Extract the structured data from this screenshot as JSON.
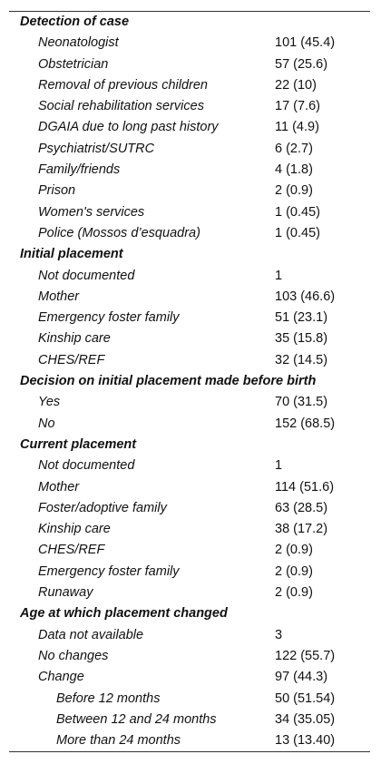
{
  "table": {
    "sections": [
      {
        "title": "Detection of case",
        "rows": [
          {
            "label": "Neonatologist",
            "value": "101 (45.4)"
          },
          {
            "label": "Obstetrician",
            "value": "57 (25.6)"
          },
          {
            "label": "Removal of previous children",
            "value": "22 (10)"
          },
          {
            "label": "Social rehabilitation services",
            "value": "17 (7.6)"
          },
          {
            "label": "DGAIA due to long past history",
            "value": "11 (4.9)"
          },
          {
            "label": "Psychiatrist/SUTRC",
            "value": "6 (2.7)"
          },
          {
            "label": "Family/friends",
            "value": "4 (1.8)"
          },
          {
            "label": "Prison",
            "value": "2 (0.9)"
          },
          {
            "label": "Women's services",
            "value": "1 (0.45)"
          },
          {
            "label": "Police (Mossos d’esquadra)",
            "value": "1 (0.45)"
          }
        ]
      },
      {
        "title": "Initial placement",
        "rows": [
          {
            "label": "Not documented",
            "value": "1"
          },
          {
            "label": "Mother",
            "value": "103 (46.6)"
          },
          {
            "label": "Emergency foster family",
            "value": "51 (23.1)"
          },
          {
            "label": "Kinship care",
            "value": "35 (15.8)"
          },
          {
            "label": "CHES/REF",
            "value": "32 (14.5)"
          }
        ]
      },
      {
        "title": "Decision on initial placement made before birth",
        "rows": [
          {
            "label": "Yes",
            "value": "70 (31.5)"
          },
          {
            "label": "No",
            "value": "152 (68.5)"
          }
        ]
      },
      {
        "title": "Current placement",
        "rows": [
          {
            "label": "Not documented",
            "value": "1"
          },
          {
            "label": "Mother",
            "value": "114 (51.6)"
          },
          {
            "label": "Foster/adoptive family",
            "value": "63 (28.5)"
          },
          {
            "label": "Kinship care",
            "value": "38 (17.2)"
          },
          {
            "label": "CHES/REF",
            "value": "2 (0.9)"
          },
          {
            "label": "Emergency foster family",
            "value": "2 (0.9)"
          },
          {
            "label": "Runaway",
            "value": "2 (0.9)"
          }
        ]
      },
      {
        "title": "Age at which placement changed",
        "rows": [
          {
            "label": "Data not available",
            "value": "3"
          },
          {
            "label": "No changes",
            "value": "122 (55.7)"
          },
          {
            "label": "Change",
            "value": "97 (44.3)",
            "rows": [
              {
                "label": "Before 12 months",
                "value": "50 (51.54)"
              },
              {
                "label": "Between 12 and 24 months",
                "value": "34 (35.05)"
              },
              {
                "label": "More than 24 months",
                "value": "13 (13.40)"
              }
            ]
          }
        ]
      }
    ]
  }
}
